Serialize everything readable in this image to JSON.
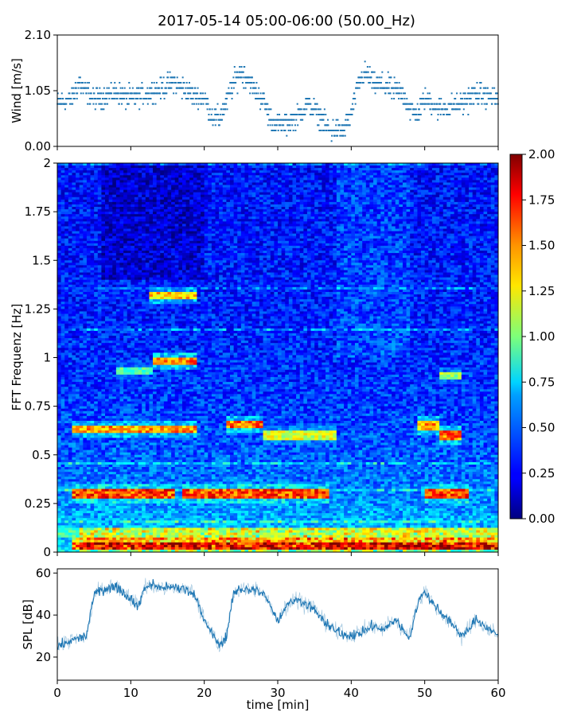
{
  "title": "2017-05-14 05:00-06:00 (50.00_Hz)",
  "colors": {
    "scatter": "#1f77b4",
    "line": "#1f77b4",
    "colormap": "jet"
  },
  "chart_data": [
    {
      "id": "wind",
      "type": "scatter",
      "ylabel": "Wind [m/s]",
      "xlim": [
        0,
        60
      ],
      "ylim": [
        0,
        2.1
      ],
      "yticks": [
        0.0,
        1.05,
        2.1
      ],
      "yticklabels": [
        "0.00",
        "1.05",
        "2.10"
      ],
      "quantization_step": 0.1,
      "profile": {
        "x": [
          0,
          2,
          3,
          4,
          5,
          8,
          10,
          12,
          14,
          16,
          18,
          20,
          21,
          22,
          23,
          24,
          25,
          26,
          27,
          28,
          29,
          30,
          31,
          32,
          33,
          34,
          35,
          36,
          37,
          38,
          39,
          40,
          41,
          42,
          43,
          45,
          47,
          48,
          49,
          50,
          52,
          55,
          57,
          60
        ],
        "y": [
          0.8,
          0.9,
          1.2,
          1.0,
          0.9,
          1.0,
          0.9,
          1.0,
          1.1,
          1.2,
          1.0,
          0.9,
          0.6,
          0.5,
          0.8,
          1.2,
          1.4,
          1.3,
          1.0,
          0.9,
          0.5,
          0.4,
          0.4,
          0.5,
          0.6,
          0.8,
          0.7,
          0.5,
          0.3,
          0.3,
          0.3,
          0.6,
          1.2,
          1.4,
          1.2,
          1.1,
          1.0,
          0.7,
          0.6,
          0.9,
          0.7,
          0.8,
          1.0,
          0.9
        ]
      }
    },
    {
      "id": "spectrogram",
      "type": "heatmap",
      "ylabel": "FFT Frequenz [Hz]",
      "xlim": [
        0,
        60
      ],
      "ylim": [
        0,
        2
      ],
      "yticks": [
        0,
        0.25,
        0.5,
        0.75,
        1,
        1.25,
        1.5,
        1.75,
        2
      ],
      "yticklabels": [
        "0",
        "0.25",
        "0.5",
        "0.75",
        "1",
        "1.25",
        "1.5",
        "1.75",
        "2"
      ],
      "colorbar": {
        "range": [
          0,
          2
        ],
        "ticks": [
          "0.00",
          "0.25",
          "0.50",
          "0.75",
          "1.00",
          "1.25",
          "1.50",
          "1.75",
          "2.00"
        ]
      },
      "features": [
        {
          "kind": "band",
          "f": 0.03,
          "x0": 2,
          "x1": 60,
          "level": 1.7
        },
        {
          "kind": "band",
          "f": 0.06,
          "x0": 2,
          "x1": 60,
          "level": 1.3
        },
        {
          "kind": "band",
          "f": 0.1,
          "x0": 0,
          "x1": 60,
          "level": 1.0
        },
        {
          "kind": "band",
          "f": 0.3,
          "x0": 2,
          "x1": 16,
          "level": 1.8
        },
        {
          "kind": "band",
          "f": 0.3,
          "x0": 17,
          "x1": 37,
          "level": 1.8
        },
        {
          "kind": "band",
          "f": 0.3,
          "x0": 50,
          "x1": 56,
          "level": 1.8
        },
        {
          "kind": "band",
          "f": 0.63,
          "x0": 2,
          "x1": 19,
          "level": 1.6
        },
        {
          "kind": "band",
          "f": 0.66,
          "x0": 23,
          "x1": 28,
          "level": 1.7
        },
        {
          "kind": "band",
          "f": 0.6,
          "x0": 28,
          "x1": 38,
          "level": 1.3
        },
        {
          "kind": "band",
          "f": 0.65,
          "x0": 49,
          "x1": 52,
          "level": 1.6
        },
        {
          "kind": "band",
          "f": 0.6,
          "x0": 52,
          "x1": 55,
          "level": 1.7
        },
        {
          "kind": "band",
          "f": 0.98,
          "x0": 13,
          "x1": 19,
          "level": 1.7
        },
        {
          "kind": "band",
          "f": 0.93,
          "x0": 8,
          "x1": 13,
          "level": 1.0
        },
        {
          "kind": "band",
          "f": 1.32,
          "x0": 12.5,
          "x1": 19,
          "level": 1.5
        },
        {
          "kind": "band",
          "f": 0.91,
          "x0": 52,
          "x1": 55,
          "level": 1.2
        }
      ]
    },
    {
      "id": "spl",
      "type": "line",
      "ylabel": "SPL [dB]",
      "xlabel": "time [min]",
      "xlim": [
        0,
        60
      ],
      "ylim": [
        9,
        62
      ],
      "yticks": [
        20,
        40,
        60
      ],
      "yticklabels": [
        "20",
        "40",
        "60"
      ],
      "xticks": [
        0,
        10,
        20,
        30,
        40,
        50,
        60
      ],
      "xticklabels": [
        "0",
        "10",
        "20",
        "30",
        "40",
        "50",
        "60"
      ],
      "envelope": {
        "x": [
          0,
          2,
          4,
          5,
          6,
          8,
          10,
          11,
          12,
          13,
          14,
          16,
          18,
          19,
          20,
          21,
          22,
          23,
          24,
          25,
          26,
          27,
          28,
          29,
          30,
          31,
          32,
          33,
          34,
          35,
          36,
          37,
          38,
          40,
          42,
          43,
          44,
          45,
          46,
          47,
          48,
          49,
          50,
          51,
          52,
          53,
          54,
          55,
          56,
          57,
          58,
          60
        ],
        "y": [
          25,
          28,
          30,
          50,
          52,
          54,
          48,
          44,
          54,
          54,
          53,
          53,
          52,
          48,
          37,
          32,
          25,
          30,
          50,
          53,
          52,
          52,
          50,
          45,
          37,
          44,
          47,
          47,
          45,
          43,
          38,
          35,
          32,
          30,
          33,
          35,
          33,
          35,
          38,
          33,
          30,
          45,
          52,
          46,
          42,
          38,
          35,
          30,
          33,
          38,
          35,
          30
        ]
      }
    }
  ]
}
